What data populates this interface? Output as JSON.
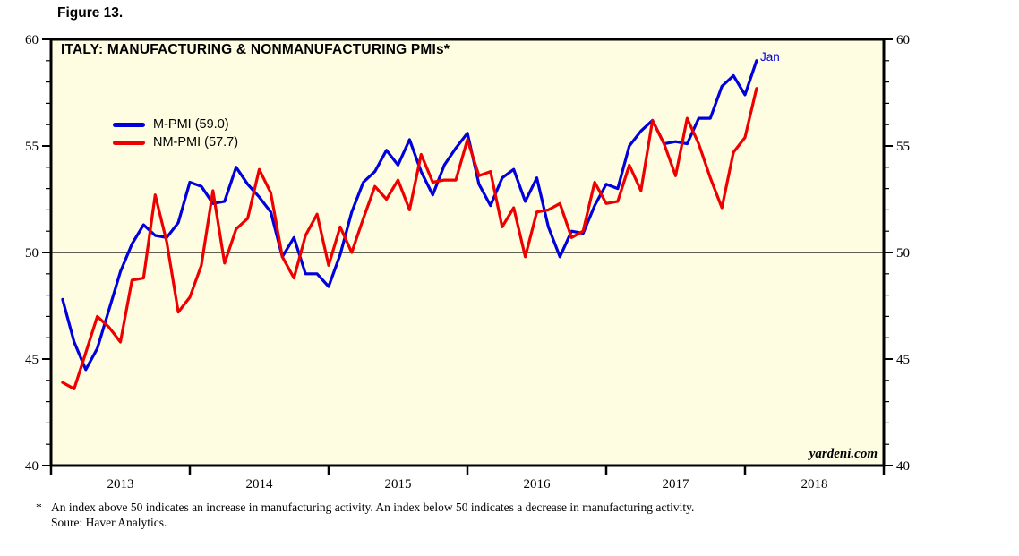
{
  "figure_label": "Figure 13.",
  "watermark": "yardeni.com",
  "annotation": {
    "last_point_label": "Jan"
  },
  "footnote": {
    "marker": "*",
    "line1": "An index above 50 indicates an increase in manufacturing activity. An index below 50 indicates a decrease in manufacturing activity.",
    "line2": "Soure: Haver Analytics."
  },
  "colors": {
    "plot_background": "#fffde1",
    "frame": "#000000",
    "m_pmi_line": "#0000dc",
    "nm_pmi_line": "#ee0000",
    "reference_line": "#000000"
  },
  "chart_data": {
    "type": "line",
    "title": "ITALY: MANUFACTURING & NONMANUFACTURING PMIs*",
    "frequency": "monthly",
    "x_start": "2013-01",
    "x_end": "2018-01",
    "x_axis_span_months": 72,
    "x_year_tick_count": 7,
    "x_year_labels": [
      "2013",
      "2014",
      "2015",
      "2016",
      "2017",
      "2018"
    ],
    "ylim": [
      40,
      60
    ],
    "ytick_major_values": [
      40,
      45,
      50,
      55,
      60
    ],
    "ytick_major_labels": [
      "40",
      "45",
      "50",
      "55",
      "60"
    ],
    "ytick_minor_step": 1,
    "reference_line_y": 50,
    "grid": "off",
    "legend_position": "top-left-inside",
    "legend": [
      {
        "label": "M-PMI (59.0)",
        "color": "#0000dc"
      },
      {
        "label": "NM-PMI (57.7)",
        "color": "#ee0000"
      }
    ],
    "series": [
      {
        "name": "M-PMI",
        "color": "#0000dc",
        "latest_value": 59.0,
        "values": [
          47.8,
          45.8,
          44.5,
          45.5,
          47.3,
          49.1,
          50.4,
          51.3,
          50.8,
          50.7,
          51.4,
          53.3,
          53.1,
          52.3,
          52.4,
          54.0,
          53.2,
          52.6,
          51.9,
          49.8,
          50.7,
          49.0,
          49.0,
          48.4,
          49.9,
          51.9,
          53.3,
          53.8,
          54.8,
          54.1,
          55.3,
          53.8,
          52.7,
          54.1,
          54.9,
          55.6,
          53.2,
          52.2,
          53.5,
          53.9,
          52.4,
          53.5,
          51.2,
          49.8,
          51.0,
          50.9,
          52.2,
          53.2,
          53.0,
          55.0,
          55.7,
          56.2,
          55.1,
          55.2,
          55.1,
          56.3,
          56.3,
          57.8,
          58.3,
          57.4,
          59.0
        ]
      },
      {
        "name": "NM-PMI",
        "color": "#ee0000",
        "latest_value": 57.7,
        "values": [
          43.9,
          43.6,
          45.3,
          47.0,
          46.5,
          45.8,
          48.7,
          48.8,
          52.7,
          50.5,
          47.2,
          47.9,
          49.4,
          52.9,
          49.5,
          51.1,
          51.6,
          53.9,
          52.8,
          49.8,
          48.8,
          50.8,
          51.8,
          49.4,
          51.2,
          50.0,
          51.6,
          53.1,
          52.5,
          53.4,
          52.0,
          54.6,
          53.3,
          53.4,
          53.4,
          55.3,
          53.6,
          53.8,
          51.2,
          52.1,
          49.8,
          51.9,
          52.0,
          52.3,
          50.7,
          51.0,
          53.3,
          52.3,
          52.4,
          54.1,
          52.9,
          56.2,
          55.1,
          53.6,
          56.3,
          55.1,
          53.5,
          52.1,
          54.7,
          55.4,
          57.7
        ]
      }
    ]
  }
}
